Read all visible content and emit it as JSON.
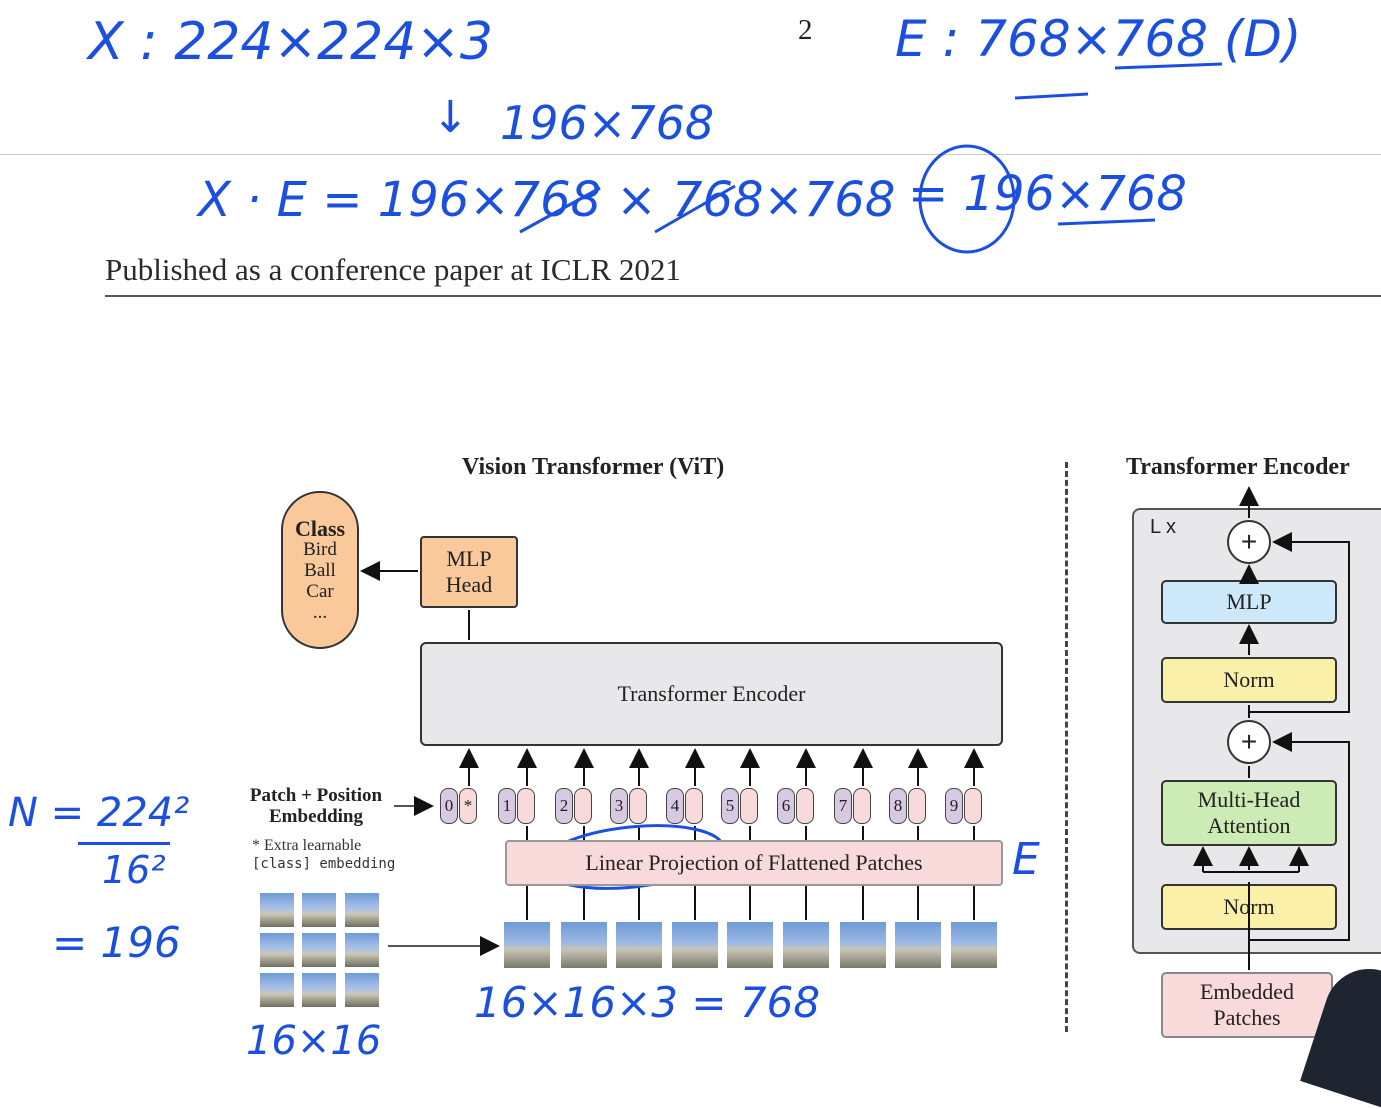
{
  "page": {
    "page_number": "2",
    "header": "Published as a conference paper at ICLR 2021"
  },
  "figure": {
    "vit_title": "Vision Transformer (ViT)",
    "encoder_title": "Transformer Encoder",
    "class_box": {
      "title": "Class",
      "items": [
        "Bird",
        "Ball",
        "Car",
        "..."
      ]
    },
    "mlp_head": [
      "MLP",
      "Head"
    ],
    "transformer_encoder": "Transformer Encoder",
    "patch_position_embedding": [
      "Patch + Position",
      "Embedding"
    ],
    "extra_note": [
      "* Extra learnable",
      "[class] embedding"
    ],
    "tokens": [
      "0",
      "1",
      "2",
      "3",
      "4",
      "5",
      "6",
      "7",
      "8",
      "9"
    ],
    "class_token_symbol": "*",
    "linear_projection": "Linear Projection of Flattened Patches",
    "encoder_block": {
      "repeat": "L x",
      "plus": "+",
      "mlp": "MLP",
      "norm": "Norm",
      "attention": [
        "Multi-Head",
        "Attention"
      ],
      "embedded_patches": [
        "Embedded",
        "Patches"
      ]
    }
  },
  "annotations": {
    "x_shape": "X : 224×224×3",
    "arrow_result": "196×768",
    "e_shape": "E : 768×768 (D)",
    "product": "X · E = 196×768 × 768×768",
    "product_result": "= 196×768",
    "n_formula_top": "N = 224²",
    "n_formula_bottom": "16²",
    "n_value": "= 196",
    "patch_size": "16×16",
    "flatten": "16×16×3 = 768",
    "e_label": "E"
  }
}
